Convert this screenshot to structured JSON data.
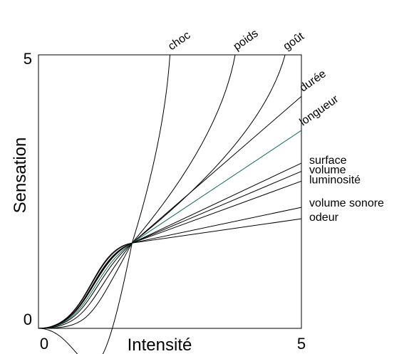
{
  "chart_data": {
    "type": "line",
    "title": "",
    "xlabel": "Intensité",
    "ylabel": "Sensation",
    "xlim": [
      0,
      5
    ],
    "ylim": [
      0,
      5
    ],
    "x_tick_labels": [
      "0",
      "5"
    ],
    "y_tick_labels": [
      "0",
      "5"
    ],
    "grid": false,
    "legend": "none",
    "crossover": {
      "x": 1.78,
      "y": 1.56
    },
    "series": [
      {
        "name": "choc",
        "label_position": "top",
        "end": [
          2.5,
          5
        ],
        "color": "#000000"
      },
      {
        "name": "poids",
        "label_position": "top",
        "end": [
          3.74,
          5
        ],
        "color": "#000000"
      },
      {
        "name": "goût",
        "label_position": "top",
        "end": [
          4.69,
          5
        ],
        "color": "#000000"
      },
      {
        "name": "durée",
        "label_position": "top",
        "end": [
          5.91,
          5
        ],
        "color": "#000000"
      },
      {
        "name": "longueur",
        "label_position": "top",
        "end": [
          7.16,
          5
        ],
        "color": "#1a6a5a"
      },
      {
        "name": "surface",
        "label_position": "right",
        "end": [
          7.16,
          4.0
        ],
        "color": "#000000"
      },
      {
        "name": "volume",
        "label_position": "right",
        "end": [
          7.16,
          3.75
        ],
        "color": "#000000"
      },
      {
        "name": "luminosité",
        "label_position": "right",
        "end": [
          7.16,
          3.45
        ],
        "color": "#000000"
      },
      {
        "name": "volume sonore",
        "label_position": "right",
        "end": [
          7.16,
          2.65
        ],
        "color": "#000000"
      },
      {
        "name": "odeur",
        "label_position": "right",
        "end": [
          7.16,
          2.3
        ],
        "color": "#000000"
      }
    ]
  }
}
